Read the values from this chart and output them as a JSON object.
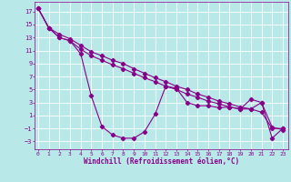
{
  "xlabel": "Windchill (Refroidissement éolien,°C)",
  "bg_color": "#b8e8e8",
  "grid_color": "#ffffff",
  "line_color": "#880088",
  "x_ticks": [
    0,
    1,
    2,
    3,
    4,
    5,
    6,
    7,
    8,
    9,
    10,
    11,
    12,
    13,
    14,
    15,
    16,
    17,
    18,
    19,
    20,
    21,
    22,
    23
  ],
  "y_ticks": [
    -3,
    -1,
    1,
    3,
    5,
    7,
    9,
    11,
    13,
    15,
    17
  ],
  "xlim": [
    -0.3,
    23.5
  ],
  "ylim": [
    -4.2,
    18.5
  ],
  "series1_x": [
    0,
    1,
    2,
    3,
    4,
    5,
    6,
    7,
    8,
    9,
    10,
    11,
    12,
    13,
    14,
    15,
    16,
    17,
    18,
    19,
    20,
    21,
    22,
    23
  ],
  "series1_y": [
    17.5,
    14.5,
    13.0,
    12.5,
    10.5,
    4.0,
    -0.7,
    -2.0,
    -2.5,
    -2.5,
    -1.5,
    1.2,
    5.5,
    5.2,
    3.0,
    2.5,
    2.5,
    2.2,
    2.3,
    2.0,
    3.5,
    3.0,
    -2.5,
    -1.0
  ],
  "series2_x": [
    0,
    1,
    2,
    3,
    4,
    5,
    6,
    7,
    8,
    9,
    10,
    11,
    12,
    13,
    14,
    15,
    16,
    17,
    18,
    19,
    20,
    21,
    22,
    23
  ],
  "series2_y": [
    17.5,
    14.5,
    13.5,
    12.8,
    11.8,
    10.8,
    10.2,
    9.5,
    9.0,
    8.2,
    7.5,
    6.8,
    6.2,
    5.5,
    5.0,
    4.3,
    3.8,
    3.2,
    2.8,
    2.3,
    2.0,
    1.5,
    -1.0,
    -1.0
  ],
  "series3_x": [
    0,
    1,
    2,
    3,
    4,
    5,
    6,
    7,
    8,
    9,
    10,
    11,
    12,
    13,
    14,
    15,
    16,
    17,
    18,
    19,
    20,
    21,
    22,
    23
  ],
  "series3_y": [
    17.5,
    14.5,
    13.0,
    12.5,
    11.2,
    10.2,
    9.5,
    8.8,
    8.2,
    7.5,
    6.8,
    6.2,
    5.5,
    5.0,
    4.3,
    3.8,
    3.2,
    2.8,
    2.3,
    2.0,
    2.0,
    3.0,
    -0.8,
    -1.2
  ]
}
